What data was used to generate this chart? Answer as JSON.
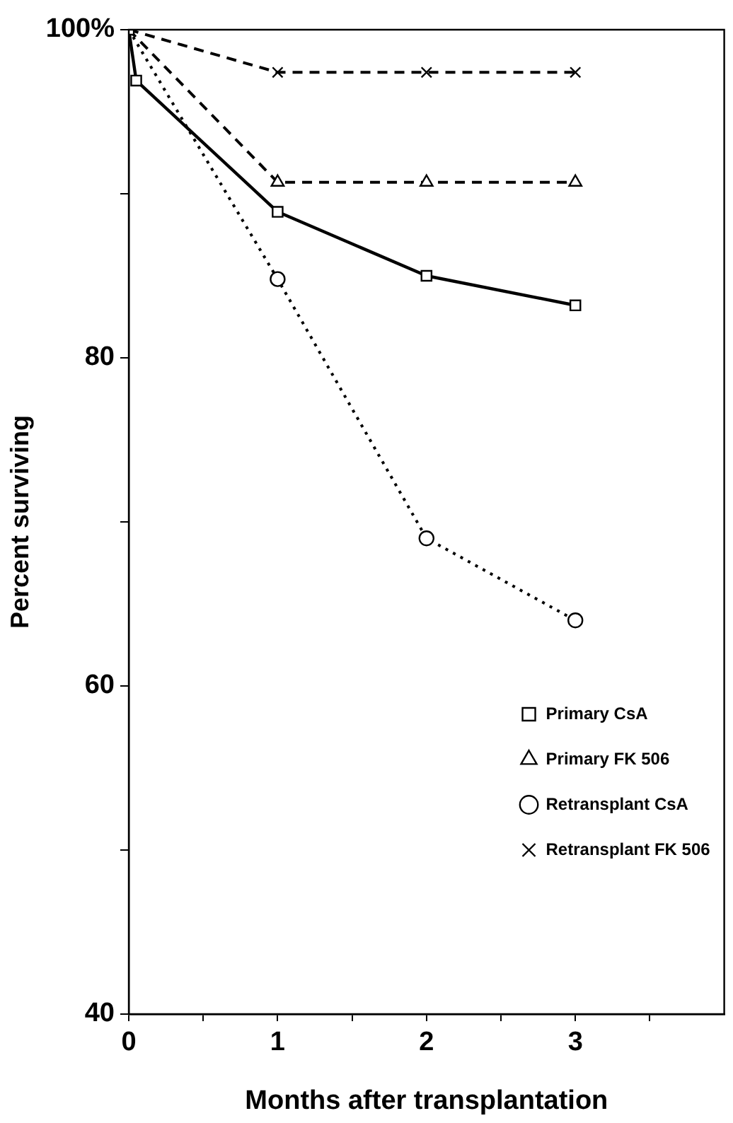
{
  "chart_data": {
    "type": "line",
    "xlabel": "Months after transplantation",
    "ylabel": "Percent surviving",
    "xlim": [
      0,
      4
    ],
    "xticks": [
      0,
      {
        "value": 0.5,
        "label": null
      },
      1,
      {
        "value": 1.5,
        "label": null
      },
      2,
      {
        "value": 2.5,
        "label": null
      },
      3,
      {
        "value": 3.5,
        "label": null
      }
    ],
    "ylim": [
      40,
      100
    ],
    "yticks": [
      40,
      {
        "value": 50,
        "label": null
      },
      60,
      {
        "value": 70,
        "label": null
      },
      80,
      {
        "value": 90,
        "label": null
      },
      {
        "value": 100,
        "label": "100%"
      }
    ],
    "grid": false,
    "legend": "bottom right",
    "series": [
      {
        "name": "Primary CsA",
        "color": "#000000",
        "line_style": "solid",
        "marker": "square",
        "x": [
          0,
          0.05,
          1,
          2,
          3
        ],
        "values": [
          100,
          96.9,
          88.9,
          85.0,
          83.2
        ]
      },
      {
        "name": "Primary FK 506",
        "color": "#000000",
        "line_style": "dashed",
        "marker": "triangle",
        "x": [
          0,
          1,
          2,
          3
        ],
        "values": [
          100,
          90.7,
          90.7,
          90.7
        ]
      },
      {
        "name": "Retransplant CsA",
        "color": "#000000",
        "line_style": "dotted",
        "marker": "circle",
        "x": [
          0,
          1,
          2,
          3
        ],
        "values": [
          100,
          84.8,
          69.0,
          64.0
        ]
      },
      {
        "name": "Retransplant FK 506",
        "color": "#000000",
        "line_style": "dashed",
        "marker": "cross",
        "x": [
          0,
          1,
          2,
          3
        ],
        "values": [
          100,
          97.4,
          97.4,
          97.4
        ]
      }
    ]
  }
}
